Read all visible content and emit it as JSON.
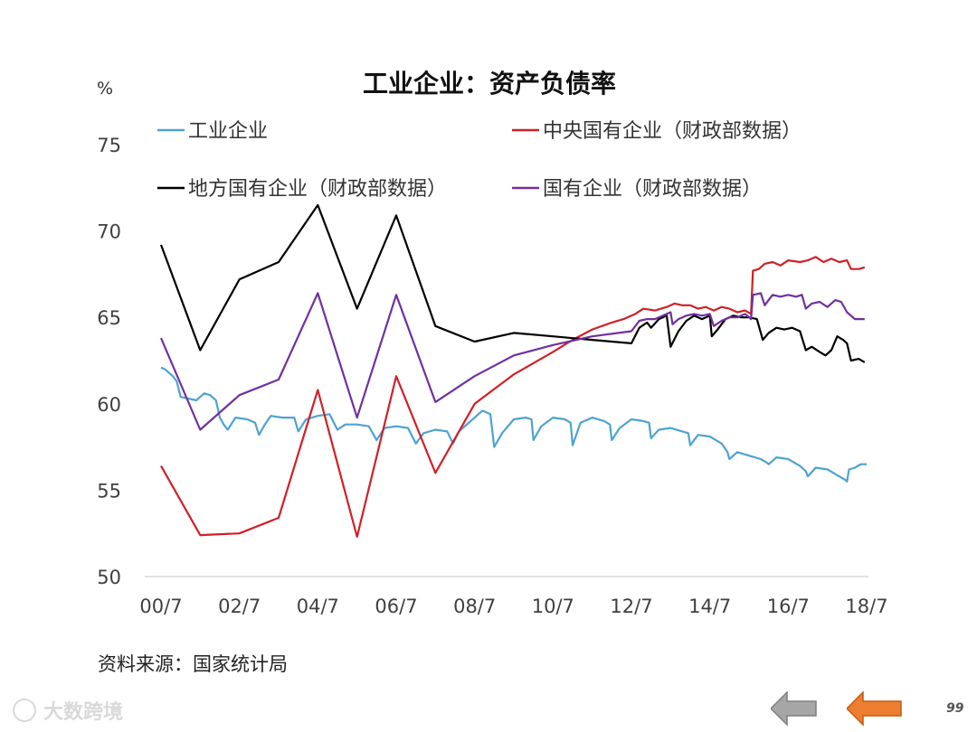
{
  "chart_data": {
    "type": "line",
    "title": "工业企业：资产负债率",
    "ylabel": "%",
    "ylim": [
      50,
      75
    ],
    "yticks": [
      50,
      55,
      60,
      65,
      70,
      75
    ],
    "xlim": [
      2000.5,
      2018.5
    ],
    "xticks": [
      {
        "t": 2000.5,
        "label": "00/7"
      },
      {
        "t": 2002.5,
        "label": "02/7"
      },
      {
        "t": 2004.5,
        "label": "04/7"
      },
      {
        "t": 2006.5,
        "label": "06/7"
      },
      {
        "t": 2008.5,
        "label": "08/7"
      },
      {
        "t": 2010.5,
        "label": "10/7"
      },
      {
        "t": 2012.5,
        "label": "12/7"
      },
      {
        "t": 2014.5,
        "label": "14/7"
      },
      {
        "t": 2016.5,
        "label": "16/7"
      },
      {
        "t": 2018.5,
        "label": "18/7"
      }
    ],
    "grid": false,
    "legend_position": "top",
    "series": [
      {
        "name": "工业企业",
        "color": "#4ea3cf",
        "points": [
          [
            2000.5,
            62.1
          ],
          [
            2000.6,
            62.0
          ],
          [
            2000.7,
            61.8
          ],
          [
            2000.8,
            61.6
          ],
          [
            2000.9,
            61.3
          ],
          [
            2001.0,
            60.4
          ],
          [
            2001.2,
            60.3
          ],
          [
            2001.4,
            60.2
          ],
          [
            2001.5,
            60.4
          ],
          [
            2001.6,
            60.6
          ],
          [
            2001.75,
            60.5
          ],
          [
            2001.9,
            60.2
          ],
          [
            2002.0,
            59.2
          ],
          [
            2002.1,
            58.8
          ],
          [
            2002.2,
            58.5
          ],
          [
            2002.4,
            59.2
          ],
          [
            2002.7,
            59.1
          ],
          [
            2002.9,
            58.9
          ],
          [
            2003.0,
            58.2
          ],
          [
            2003.15,
            58.8
          ],
          [
            2003.3,
            59.3
          ],
          [
            2003.6,
            59.2
          ],
          [
            2003.9,
            59.2
          ],
          [
            2004.0,
            58.4
          ],
          [
            2004.2,
            59.1
          ],
          [
            2004.5,
            59.3
          ],
          [
            2004.8,
            59.4
          ],
          [
            2005.0,
            58.5
          ],
          [
            2005.2,
            58.8
          ],
          [
            2005.5,
            58.8
          ],
          [
            2005.8,
            58.7
          ],
          [
            2006.0,
            57.9
          ],
          [
            2006.2,
            58.6
          ],
          [
            2006.5,
            58.7
          ],
          [
            2006.8,
            58.6
          ],
          [
            2007.0,
            57.7
          ],
          [
            2007.2,
            58.3
          ],
          [
            2007.5,
            58.5
          ],
          [
            2007.8,
            58.4
          ],
          [
            2007.95,
            57.7
          ],
          [
            2008.1,
            58.4
          ],
          [
            2008.4,
            59.0
          ],
          [
            2008.7,
            59.6
          ],
          [
            2008.9,
            59.4
          ],
          [
            2009.0,
            57.5
          ],
          [
            2009.2,
            58.3
          ],
          [
            2009.5,
            59.1
          ],
          [
            2009.8,
            59.2
          ],
          [
            2009.95,
            59.1
          ],
          [
            2010.0,
            57.9
          ],
          [
            2010.2,
            58.7
          ],
          [
            2010.5,
            59.2
          ],
          [
            2010.8,
            59.1
          ],
          [
            2010.95,
            58.9
          ],
          [
            2011.0,
            57.6
          ],
          [
            2011.2,
            58.9
          ],
          [
            2011.5,
            59.2
          ],
          [
            2011.8,
            59.0
          ],
          [
            2011.95,
            58.8
          ],
          [
            2012.0,
            57.9
          ],
          [
            2012.2,
            58.6
          ],
          [
            2012.5,
            59.1
          ],
          [
            2012.8,
            59.0
          ],
          [
            2012.95,
            58.9
          ],
          [
            2013.0,
            58.0
          ],
          [
            2013.2,
            58.5
          ],
          [
            2013.5,
            58.6
          ],
          [
            2013.8,
            58.4
          ],
          [
            2013.95,
            58.3
          ],
          [
            2014.0,
            57.6
          ],
          [
            2014.2,
            58.2
          ],
          [
            2014.5,
            58.1
          ],
          [
            2014.8,
            57.7
          ],
          [
            2014.95,
            57.2
          ],
          [
            2015.0,
            56.8
          ],
          [
            2015.2,
            57.2
          ],
          [
            2015.5,
            57.0
          ],
          [
            2015.8,
            56.8
          ],
          [
            2015.95,
            56.6
          ],
          [
            2016.0,
            56.5
          ],
          [
            2016.2,
            56.9
          ],
          [
            2016.5,
            56.8
          ],
          [
            2016.8,
            56.4
          ],
          [
            2016.95,
            56.1
          ],
          [
            2017.0,
            55.8
          ],
          [
            2017.2,
            56.3
          ],
          [
            2017.5,
            56.2
          ],
          [
            2017.8,
            55.8
          ],
          [
            2017.95,
            55.6
          ],
          [
            2018.0,
            55.5
          ],
          [
            2018.05,
            56.2
          ],
          [
            2018.2,
            56.3
          ],
          [
            2018.35,
            56.5
          ],
          [
            2018.5,
            56.5
          ]
        ]
      },
      {
        "name": "中央国有企业（财政部数据）",
        "color": "#d02027",
        "points": [
          [
            2000.5,
            56.4
          ],
          [
            2001.5,
            52.4
          ],
          [
            2002.5,
            52.5
          ],
          [
            2003.5,
            53.4
          ],
          [
            2004.5,
            60.8
          ],
          [
            2005.5,
            52.3
          ],
          [
            2006.5,
            61.6
          ],
          [
            2007.5,
            56.0
          ],
          [
            2008.5,
            60.0
          ],
          [
            2009.5,
            61.7
          ],
          [
            2010.5,
            63.0
          ],
          [
            2011.0,
            63.7
          ],
          [
            2011.5,
            64.3
          ],
          [
            2012.0,
            64.7
          ],
          [
            2012.3,
            64.9
          ],
          [
            2012.6,
            65.2
          ],
          [
            2012.8,
            65.5
          ],
          [
            2013.1,
            65.4
          ],
          [
            2013.4,
            65.6
          ],
          [
            2013.6,
            65.8
          ],
          [
            2013.8,
            65.7
          ],
          [
            2014.0,
            65.7
          ],
          [
            2014.2,
            65.5
          ],
          [
            2014.4,
            65.6
          ],
          [
            2014.6,
            65.4
          ],
          [
            2014.8,
            65.6
          ],
          [
            2015.0,
            65.5
          ],
          [
            2015.2,
            65.3
          ],
          [
            2015.4,
            65.4
          ],
          [
            2015.55,
            65.2
          ],
          [
            2015.6,
            67.7
          ],
          [
            2015.75,
            67.8
          ],
          [
            2015.9,
            68.1
          ],
          [
            2016.1,
            68.2
          ],
          [
            2016.3,
            68.0
          ],
          [
            2016.5,
            68.3
          ],
          [
            2016.8,
            68.2
          ],
          [
            2017.0,
            68.3
          ],
          [
            2017.2,
            68.5
          ],
          [
            2017.4,
            68.2
          ],
          [
            2017.6,
            68.4
          ],
          [
            2017.8,
            68.2
          ],
          [
            2018.0,
            68.3
          ],
          [
            2018.1,
            67.8
          ],
          [
            2018.3,
            67.8
          ],
          [
            2018.45,
            67.9
          ]
        ]
      },
      {
        "name": "地方国有企业（财政部数据）",
        "color": "#000000",
        "points": [
          [
            2000.5,
            69.2
          ],
          [
            2001.5,
            63.1
          ],
          [
            2002.5,
            67.2
          ],
          [
            2003.5,
            68.2
          ],
          [
            2004.5,
            71.5
          ],
          [
            2005.5,
            65.5
          ],
          [
            2006.5,
            70.9
          ],
          [
            2007.5,
            64.5
          ],
          [
            2008.5,
            63.6
          ],
          [
            2009.5,
            64.1
          ],
          [
            2010.5,
            63.9
          ],
          [
            2011.5,
            63.7
          ],
          [
            2012.5,
            63.5
          ],
          [
            2012.7,
            64.4
          ],
          [
            2012.9,
            64.7
          ],
          [
            2013.0,
            64.4
          ],
          [
            2013.2,
            64.9
          ],
          [
            2013.4,
            65.1
          ],
          [
            2013.5,
            63.3
          ],
          [
            2013.7,
            64.2
          ],
          [
            2013.9,
            64.8
          ],
          [
            2014.1,
            65.1
          ],
          [
            2014.3,
            64.9
          ],
          [
            2014.5,
            65.1
          ],
          [
            2014.55,
            63.9
          ],
          [
            2014.7,
            64.3
          ],
          [
            2014.9,
            64.9
          ],
          [
            2015.1,
            65.1
          ],
          [
            2015.3,
            65.0
          ],
          [
            2015.5,
            65.0
          ],
          [
            2015.7,
            64.9
          ],
          [
            2015.85,
            63.7
          ],
          [
            2016.0,
            64.1
          ],
          [
            2016.2,
            64.4
          ],
          [
            2016.4,
            64.3
          ],
          [
            2016.6,
            64.4
          ],
          [
            2016.8,
            64.2
          ],
          [
            2016.95,
            63.1
          ],
          [
            2017.1,
            63.3
          ],
          [
            2017.3,
            63.0
          ],
          [
            2017.45,
            62.8
          ],
          [
            2017.6,
            63.1
          ],
          [
            2017.75,
            63.9
          ],
          [
            2017.9,
            63.7
          ],
          [
            2018.0,
            63.5
          ],
          [
            2018.1,
            62.5
          ],
          [
            2018.3,
            62.6
          ],
          [
            2018.45,
            62.4
          ]
        ]
      },
      {
        "name": "国有企业（财政部数据）",
        "color": "#7030a0",
        "points": [
          [
            2000.5,
            63.8
          ],
          [
            2001.5,
            58.5
          ],
          [
            2002.5,
            60.5
          ],
          [
            2003.5,
            61.4
          ],
          [
            2004.5,
            66.4
          ],
          [
            2005.5,
            59.2
          ],
          [
            2006.5,
            66.3
          ],
          [
            2007.5,
            60.1
          ],
          [
            2008.5,
            61.6
          ],
          [
            2009.5,
            62.8
          ],
          [
            2010.5,
            63.4
          ],
          [
            2011.5,
            63.9
          ],
          [
            2012.5,
            64.2
          ],
          [
            2012.7,
            64.8
          ],
          [
            2012.9,
            64.9
          ],
          [
            2013.1,
            64.9
          ],
          [
            2013.3,
            65.1
          ],
          [
            2013.5,
            65.3
          ],
          [
            2013.55,
            64.6
          ],
          [
            2013.7,
            64.9
          ],
          [
            2013.9,
            65.1
          ],
          [
            2014.1,
            65.2
          ],
          [
            2014.3,
            65.1
          ],
          [
            2014.5,
            65.2
          ],
          [
            2014.6,
            64.5
          ],
          [
            2014.8,
            64.8
          ],
          [
            2015.0,
            65.0
          ],
          [
            2015.2,
            65.0
          ],
          [
            2015.4,
            65.2
          ],
          [
            2015.55,
            64.9
          ],
          [
            2015.6,
            66.3
          ],
          [
            2015.8,
            66.4
          ],
          [
            2015.9,
            65.7
          ],
          [
            2016.1,
            66.3
          ],
          [
            2016.3,
            66.2
          ],
          [
            2016.5,
            66.3
          ],
          [
            2016.7,
            66.2
          ],
          [
            2016.85,
            66.3
          ],
          [
            2016.95,
            65.5
          ],
          [
            2017.1,
            65.8
          ],
          [
            2017.3,
            65.9
          ],
          [
            2017.5,
            65.6
          ],
          [
            2017.7,
            66.0
          ],
          [
            2017.85,
            65.9
          ],
          [
            2018.0,
            65.3
          ],
          [
            2018.2,
            64.9
          ],
          [
            2018.45,
            64.9
          ]
        ]
      }
    ],
    "source": "资料来源：国家统计局"
  },
  "footer": {
    "watermark": "大数跨境",
    "page_number": "99",
    "prev_color": "#a6a6a6",
    "next_color": "#ed7d31"
  }
}
